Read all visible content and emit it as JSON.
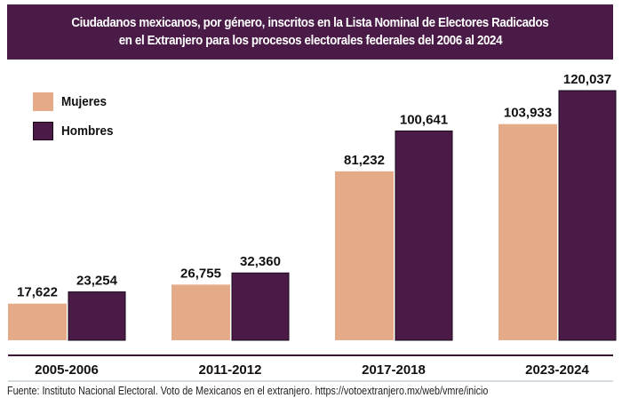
{
  "title": {
    "line1": "Ciudadanos mexicanos, por género, inscritos en la Lista Nominal de Electores Radicados",
    "line2": "en el Extranjero para los procesos electorales federales del 2006 al 2024"
  },
  "legend": {
    "items": [
      {
        "label": "Mujeres",
        "color": "#e5ab88"
      },
      {
        "label": "Hombres",
        "color": "#4a1b47"
      }
    ]
  },
  "source": "Fuente: Instituto Nacional Electoral. Voto de Mexicanos en el extranjero. https://votoextranjero.mx/web/vmre/inicio",
  "chart_data": {
    "type": "bar",
    "title": "Ciudadanos mexicanos, por género, inscritos en la Lista Nominal de Electores Radicados en el Extranjero para los procesos electorales federales del 2006 al 2024",
    "categories": [
      "2005-2006",
      "2011-2012",
      "2017-2018",
      "2023-2024"
    ],
    "series": [
      {
        "name": "Mujeres",
        "color": "#e5ab88",
        "values": [
          17622,
          26755,
          81232,
          103933
        ],
        "labels": [
          "17,622",
          "26,755",
          "81,232",
          "103,933"
        ]
      },
      {
        "name": "Hombres",
        "color": "#4a1b47",
        "values": [
          23254,
          32360,
          100641,
          120037
        ],
        "labels": [
          "23,254",
          "32,360",
          "100,641",
          "120,037"
        ]
      }
    ],
    "xlabel": "",
    "ylabel": "",
    "ylim": [
      0,
      120037
    ],
    "grid": false,
    "legend_position": "top-left"
  }
}
